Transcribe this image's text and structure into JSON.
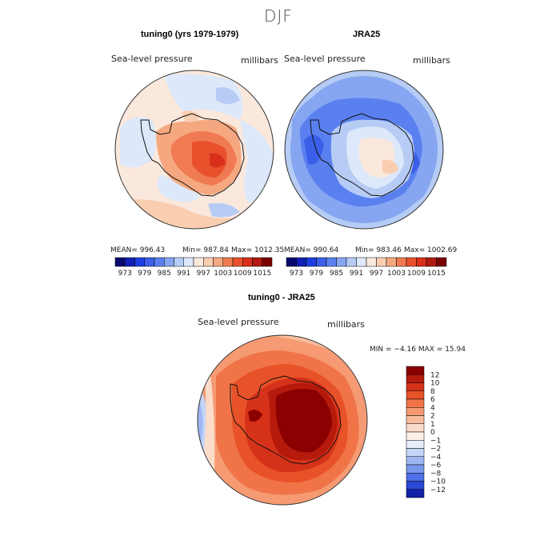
{
  "main_title": "DJF",
  "chart_data": [
    {
      "type": "heatmap",
      "title": "tuning0 (yrs 1979-1979)",
      "subtitle": "Sea-level pressure",
      "units": "millibars",
      "stats": {
        "mean": "MEAN= 996.43",
        "min": "Min= 987.84",
        "max": "Max= 1012.35"
      },
      "colorbar": {
        "levels": [
          "973",
          "979",
          "985",
          "991",
          "997",
          "1003",
          "1009",
          "1015"
        ],
        "colors": [
          "#08086f",
          "#1020b4",
          "#1e3ee0",
          "#3b5fe8",
          "#5a80f0",
          "#86a6f2",
          "#b6ccf5",
          "#dde8fa",
          "#fbe8dc",
          "#f9cdb0",
          "#f5a880",
          "#f07a52",
          "#e8512c",
          "#d8301a",
          "#b01a10",
          "#7a0000"
        ]
      }
    },
    {
      "type": "heatmap",
      "title": "JRA25",
      "subtitle": "Sea-level pressure",
      "units": "millibars",
      "stats": {
        "mean": "MEAN= 990.64",
        "min": "Min= 983.46",
        "max": "Max= 1002.69"
      },
      "colorbar": {
        "levels": [
          "973",
          "979",
          "985",
          "991",
          "997",
          "1003",
          "1009",
          "1015"
        ],
        "colors": [
          "#08086f",
          "#1020b4",
          "#1e3ee0",
          "#3b5fe8",
          "#5a80f0",
          "#86a6f2",
          "#b6ccf5",
          "#dde8fa",
          "#fbe8dc",
          "#f9cdb0",
          "#f5a880",
          "#f07a52",
          "#e8512c",
          "#d8301a",
          "#b01a10",
          "#7a0000"
        ]
      }
    },
    {
      "type": "heatmap",
      "title": "tuning0 - JRA25",
      "subtitle": "Sea-level pressure",
      "units": "millibars",
      "stats": {
        "minmax": "MIN =  −4.16 MAX =  15.94"
      },
      "colorbar": {
        "levels": [
          "12",
          "10",
          "8",
          "6",
          "4",
          "2",
          "1",
          "0",
          "−1",
          "−2",
          "−4",
          "−6",
          "−8",
          "−10",
          "−12"
        ],
        "colors": [
          "#8b0000",
          "#b51a0c",
          "#d6321a",
          "#e85228",
          "#f07448",
          "#f59a72",
          "#f8bd9e",
          "#fbdcc9",
          "#fdf2ea",
          "#e6eefc",
          "#c4d6f8",
          "#9fb8f4",
          "#7898ee",
          "#4f70e6",
          "#2a48d6",
          "#1222a8"
        ]
      }
    }
  ]
}
